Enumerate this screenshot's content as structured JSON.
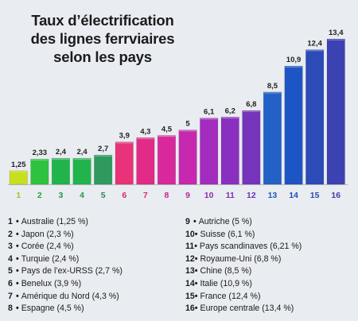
{
  "title_lines": [
    "Taux d’électrification",
    "des lignes ferrviaires",
    "selon les pays"
  ],
  "chart_data": {
    "type": "bar",
    "title": "Taux d’électrification des lignes ferrviaires selon les pays",
    "categories": [
      "1",
      "2",
      "3",
      "4",
      "5",
      "6",
      "7",
      "8",
      "9",
      "10",
      "11",
      "12",
      "13",
      "14",
      "15",
      "16"
    ],
    "values": [
      1.25,
      2.33,
      2.4,
      2.4,
      2.7,
      3.9,
      4.3,
      4.5,
      5,
      6.1,
      6.2,
      6.8,
      8.5,
      10.9,
      12.4,
      13.4
    ],
    "value_labels": [
      "1,25",
      "2,33",
      "2,4",
      "2,4",
      "2,7",
      "3,9",
      "4,3",
      "4,5",
      "5",
      "6,1",
      "6,2",
      "6,8",
      "8,5",
      "10,9",
      "12,4",
      "13,4"
    ],
    "ylim": [
      0,
      13.4
    ],
    "grid": false,
    "bar_colors": [
      "#c6e01e",
      "#2fc23e",
      "#22b44c",
      "#22b44c",
      "#2e9a5e",
      "#e8337a",
      "#e12b86",
      "#d8289c",
      "#c629b0",
      "#a32cbf",
      "#8a30c1",
      "#7634bd",
      "#2361c6",
      "#1e55c4",
      "#2c4ab8",
      "#3d42b2"
    ],
    "label_colors": [
      "#a6c51a",
      "#27a83a",
      "#1f9c44",
      "#1f9c44",
      "#2a8656",
      "#d42c6c",
      "#cc2a7c",
      "#c2278f",
      "#b02aa2",
      "#8e2fb3",
      "#7a32b8",
      "#6934b4",
      "#2059bf",
      "#1d4fbb",
      "#2a48b0",
      "#3c40a8"
    ]
  },
  "legend": {
    "left": [
      {
        "num": "1",
        "text": "Australie (1,25 %)"
      },
      {
        "num": "2",
        "text": "Japon (2,3 %)"
      },
      {
        "num": "3",
        "text": "Corée (2,4 %)"
      },
      {
        "num": "4",
        "text": "Turquie (2,4 %)"
      },
      {
        "num": "5",
        "text": "Pays de l’ex-URSS (2,7 %)"
      },
      {
        "num": "6",
        "text": "Benelux (3,9 %)"
      },
      {
        "num": "7",
        "text": "Amérique du Nord (4,3 %)"
      },
      {
        "num": "8",
        "text": "Espagne (4,5 %)"
      }
    ],
    "right": [
      {
        "num": "9",
        "text": "Autriche (5 %)"
      },
      {
        "num": "10",
        "text": "Suisse (6,1 %)"
      },
      {
        "num": "11",
        "text": "Pays scandinaves (6,21 %)"
      },
      {
        "num": "12",
        "text": "Royaume-Uni (6,8 %)"
      },
      {
        "num": "13",
        "text": "Chine (8,5 %)"
      },
      {
        "num": "14",
        "text": "Italie (10,9 %)"
      },
      {
        "num": "15",
        "text": "France (12,4 %)"
      },
      {
        "num": "16",
        "text": "Europe centrale (13,4 %)"
      }
    ]
  }
}
